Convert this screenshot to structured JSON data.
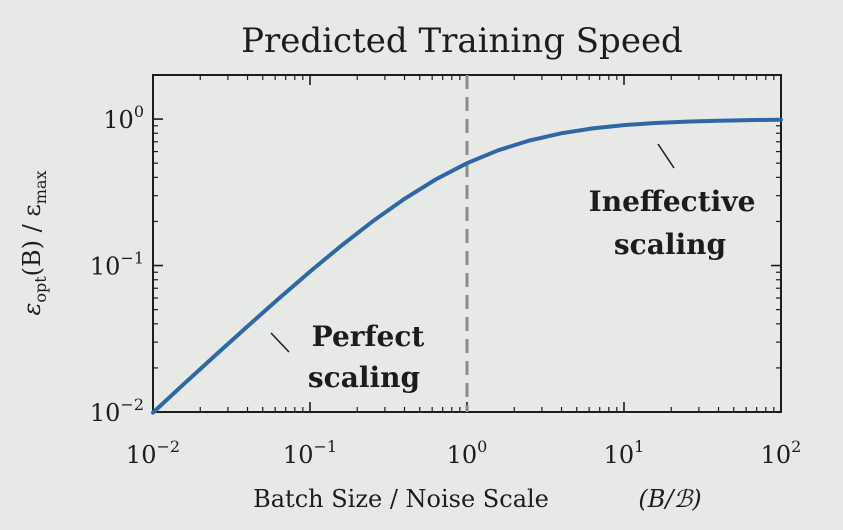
{
  "chart_data": {
    "type": "line",
    "title": "Predicted Training Speed",
    "xlabel": "Batch Size / Noise Scale",
    "xlabel_symbol": "(B/ℬ)",
    "ylabel_parts": {
      "eps": "ε",
      "sub1": "opt",
      "mid": "(B) / ε",
      "sub2": "max"
    },
    "xscale": "log",
    "yscale": "log",
    "xlim": [
      0.01,
      100
    ],
    "ylim": [
      0.01,
      2
    ],
    "xticks": [
      {
        "value": 0.01,
        "base": "10",
        "exp": "−2"
      },
      {
        "value": 0.1,
        "base": "10",
        "exp": "−1"
      },
      {
        "value": 1,
        "base": "10",
        "exp": "0"
      },
      {
        "value": 10,
        "base": "10",
        "exp": "1"
      },
      {
        "value": 100,
        "base": "10",
        "exp": "2"
      }
    ],
    "yticks": [
      {
        "value": 0.01,
        "base": "10",
        "exp": "−2"
      },
      {
        "value": 0.1,
        "base": "10",
        "exp": "−1"
      },
      {
        "value": 1,
        "base": "10",
        "exp": "0"
      }
    ],
    "series": [
      {
        "x": [
          0.01,
          0.0158,
          0.0251,
          0.0398,
          0.0631,
          0.1,
          0.158,
          0.251,
          0.398,
          0.631,
          1,
          1.585,
          2.512,
          3.981,
          6.31,
          10,
          15.85,
          25.12,
          39.81,
          63.1,
          100
        ],
        "y": [
          0.0099,
          0.0156,
          0.0245,
          0.0383,
          0.0594,
          0.0909,
          0.1365,
          0.2006,
          0.2847,
          0.3869,
          0.5,
          0.6131,
          0.7153,
          0.7993,
          0.8632,
          0.9091,
          0.9407,
          0.9617,
          0.9755,
          0.9844,
          0.9901
        ],
        "color": "#2f66a6"
      }
    ],
    "vline": {
      "x": 1,
      "style": "dashed",
      "color": "#8c8c8c"
    },
    "annotations": [
      {
        "lines": [
          "Perfect",
          "scaling"
        ]
      },
      {
        "lines": [
          "Ineffective",
          "scaling"
        ]
      }
    ]
  }
}
